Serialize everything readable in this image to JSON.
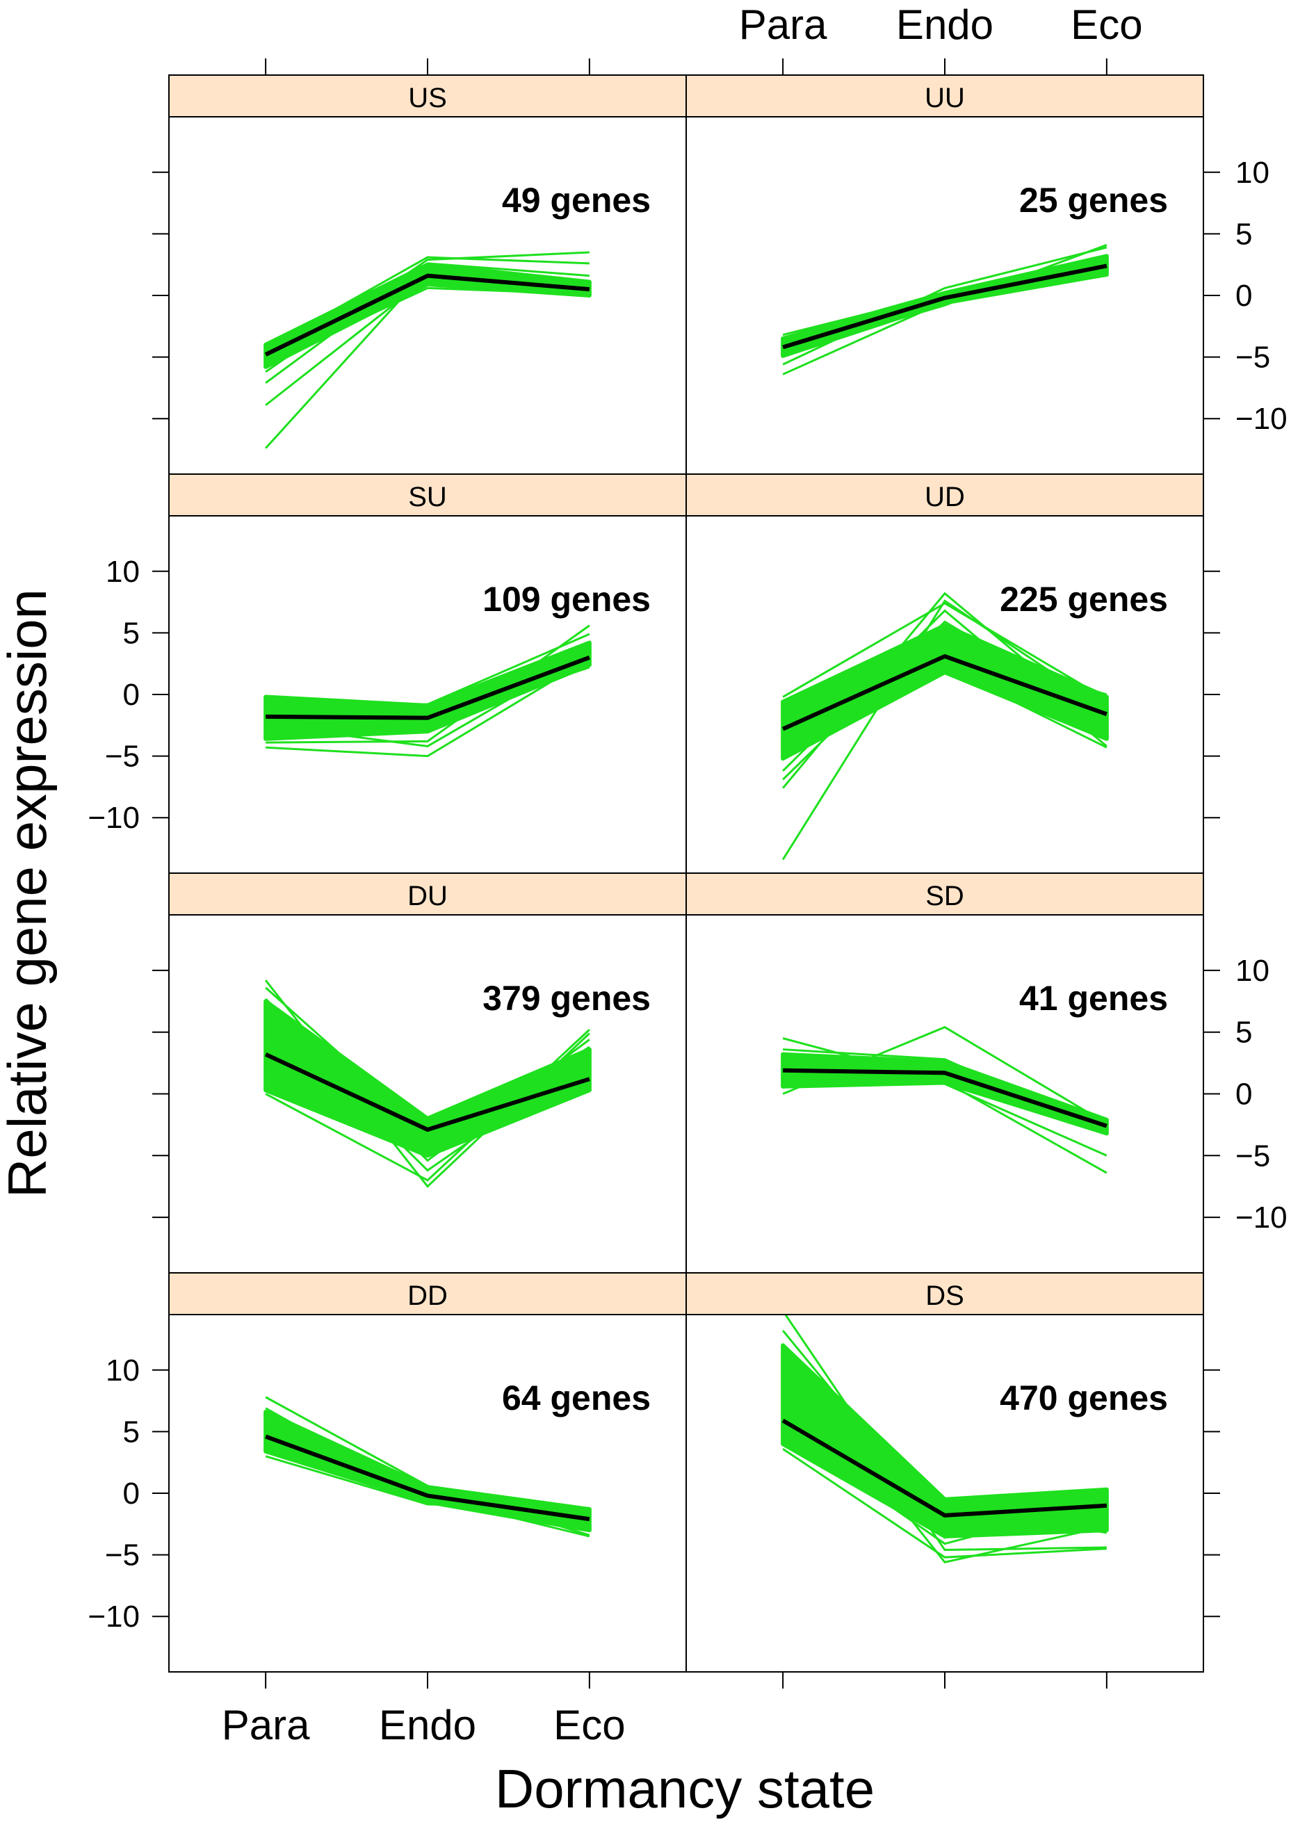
{
  "chart_data": {
    "type": "line",
    "xlabel": "Dormancy state",
    "ylabel": "Relative gene expression",
    "categories": [
      "Para",
      "Endo",
      "Eco"
    ],
    "ylim": [
      -14.5,
      14.5
    ],
    "yticks": [
      -10,
      -5,
      0,
      5,
      10
    ],
    "colors": {
      "gene": "#1ee01e",
      "mean": "#000000",
      "strip": "#ffe4c9",
      "frame": "#000000"
    },
    "panels": [
      {
        "name": "US",
        "count_label": "49 genes",
        "mean": [
          -4.8,
          1.6,
          0.5
        ],
        "band": {
          "lo": [
            -5.8,
            0.9,
            0.0
          ],
          "hi": [
            -4.0,
            2.5,
            1.1
          ]
        },
        "genes": [
          [
            -12.4,
            2.1,
            0.3
          ],
          [
            -8.9,
            1.4,
            0.9
          ],
          [
            -7.1,
            2.6,
            1.6
          ],
          [
            -6.2,
            2.9,
            3.5
          ],
          [
            -5.5,
            0.6,
            0.1
          ],
          [
            -4.3,
            3.1,
            2.6
          ],
          [
            -4.0,
            2.2,
            0.8
          ]
        ]
      },
      {
        "name": "UU",
        "count_label": "25 genes",
        "mean": [
          -4.2,
          -0.2,
          2.4
        ],
        "band": {
          "lo": [
            -4.9,
            -0.6,
            1.7
          ],
          "hi": [
            -3.5,
            0.2,
            3.2
          ]
        },
        "genes": [
          [
            -6.4,
            -0.5,
            2.1
          ],
          [
            -5.6,
            0.6,
            3.9
          ],
          [
            -3.2,
            0.1,
            1.6
          ],
          [
            -4.7,
            -0.8,
            4.1
          ]
        ]
      },
      {
        "name": "SU",
        "count_label": "109 genes",
        "mean": [
          -1.8,
          -1.9,
          3.0
        ],
        "band": {
          "lo": [
            -3.6,
            -3.0,
            2.4
          ],
          "hi": [
            -0.2,
            -0.9,
            4.2
          ]
        },
        "genes": [
          [
            -4.3,
            -5.0,
            2.9
          ],
          [
            -3.9,
            -3.8,
            5.6
          ],
          [
            -0.6,
            -0.8,
            4.9
          ],
          [
            -2.5,
            -4.2,
            3.4
          ],
          [
            -1.0,
            -2.2,
            2.2
          ]
        ]
      },
      {
        "name": "UD",
        "count_label": "225 genes",
        "mean": [
          -2.8,
          3.1,
          -1.6
        ],
        "band": {
          "lo": [
            -5.2,
            1.8,
            -3.6
          ],
          "hi": [
            -0.6,
            5.6,
            -0.2
          ]
        },
        "genes": [
          [
            -13.4,
            7.6,
            -1.2
          ],
          [
            -7.6,
            8.2,
            -2.8
          ],
          [
            -6.2,
            6.8,
            -4.2
          ],
          [
            -0.2,
            7.4,
            -0.4
          ],
          [
            -4.6,
            2.2,
            -4.3
          ],
          [
            -1.5,
            5.0,
            -3.1
          ],
          [
            -3.7,
            3.8,
            0.0
          ],
          [
            -6.9,
            5.9,
            -1.9
          ]
        ]
      },
      {
        "name": "DU",
        "count_label": "379 genes",
        "mean": [
          3.2,
          -2.9,
          1.2
        ],
        "band": {
          "lo": [
            0.3,
            -5.0,
            0.3
          ],
          "hi": [
            7.5,
            -2.0,
            3.6
          ]
        },
        "genes": [
          [
            9.2,
            -7.5,
            4.9
          ],
          [
            8.6,
            -3.1,
            1.0
          ],
          [
            6.8,
            -6.2,
            2.9
          ],
          [
            0.0,
            -7.0,
            5.2
          ],
          [
            5.2,
            -2.2,
            0.4
          ],
          [
            2.2,
            -4.6,
            3.8
          ],
          [
            0.4,
            -2.8,
            0.8
          ],
          [
            7.7,
            -5.4,
            4.4
          ]
        ]
      },
      {
        "name": "SD",
        "count_label": "41 genes",
        "mean": [
          1.9,
          1.7,
          -2.6
        ],
        "band": {
          "lo": [
            0.6,
            0.9,
            -3.2
          ],
          "hi": [
            3.2,
            2.6,
            -2.1
          ]
        },
        "genes": [
          [
            4.5,
            1.0,
            -6.4
          ],
          [
            0.0,
            5.4,
            -2.4
          ],
          [
            3.6,
            2.8,
            -3.0
          ],
          [
            1.1,
            1.8,
            -2.1
          ],
          [
            2.4,
            0.8,
            -5.0
          ]
        ]
      },
      {
        "name": "DD",
        "count_label": "64 genes",
        "mean": [
          4.6,
          -0.2,
          -2.1
        ],
        "band": {
          "lo": [
            3.4,
            -0.7,
            -3.0
          ],
          "hi": [
            6.6,
            0.5,
            -1.3
          ]
        },
        "genes": [
          [
            7.8,
            0.6,
            -3.4
          ],
          [
            3.0,
            -0.9,
            -1.2
          ],
          [
            5.6,
            0.2,
            -2.9
          ],
          [
            6.9,
            -0.5,
            -1.9
          ],
          [
            3.9,
            -0.3,
            -3.5
          ]
        ]
      },
      {
        "name": "DS",
        "count_label": "470  genes",
        "mean": [
          5.9,
          -1.8,
          -1.0
        ],
        "band": {
          "lo": [
            4.0,
            -3.5,
            -3.0
          ],
          "hi": [
            12.0,
            -0.5,
            0.3
          ]
        },
        "genes": [
          [
            14.8,
            -4.6,
            -4.4
          ],
          [
            13.2,
            -2.8,
            0.2
          ],
          [
            11.0,
            -5.6,
            -2.7
          ],
          [
            3.6,
            -5.2,
            -4.5
          ],
          [
            8.7,
            -0.6,
            -1.1
          ],
          [
            6.6,
            -3.6,
            0.0
          ],
          [
            9.8,
            -1.3,
            -3.2
          ],
          [
            5.0,
            -4.1,
            -0.6
          ]
        ]
      }
    ],
    "top_axis_labels": [
      "Para",
      "Endo",
      "Eco"
    ],
    "bottom_axis_labels": [
      "Para",
      "Endo",
      "Eco"
    ],
    "left_axis_rows": [
      "SU",
      "DD"
    ],
    "right_axis_rows": [
      "UU",
      "SD"
    ]
  }
}
